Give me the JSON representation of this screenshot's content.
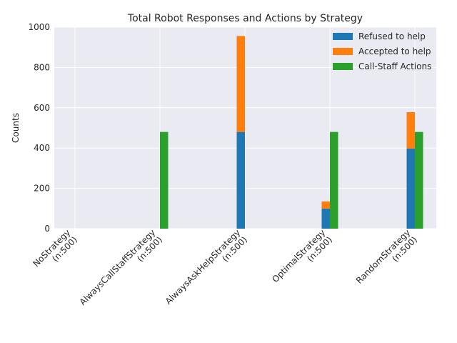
{
  "chart_data": {
    "type": "bar",
    "title": "Total Robot Responses and Actions by Strategy",
    "xlabel": "",
    "ylabel": "Counts",
    "ylim": [
      0,
      1000
    ],
    "yticks": [
      0,
      200,
      400,
      600,
      800,
      1000
    ],
    "grid": true,
    "legend_position": "top-right",
    "categories": [
      "NoStrategy\n(n:500)",
      "AlwaysCallStaffStrategy\n(n:500)",
      "AlwaysAskHelpStrategy\n(n:500)",
      "OptimalStrategy\n(n:500)",
      "RandomStrategy\n(n:500)"
    ],
    "series": [
      {
        "name": "Refused to help",
        "color": "#1f77b4",
        "stack": "responses",
        "values": [
          0,
          0,
          480,
          100,
          398
        ]
      },
      {
        "name": "Accepted to help",
        "color": "#ff7f0e",
        "stack": "responses",
        "values": [
          0,
          0,
          476,
          35,
          180
        ]
      },
      {
        "name": "Call-Staff Actions",
        "color": "#2ca02c",
        "stack": "actions",
        "values": [
          0,
          480,
          0,
          480,
          480
        ]
      }
    ]
  },
  "style": {
    "background": "#eaeaf2",
    "grid_color": "#ffffff",
    "text_color": "#262626"
  }
}
